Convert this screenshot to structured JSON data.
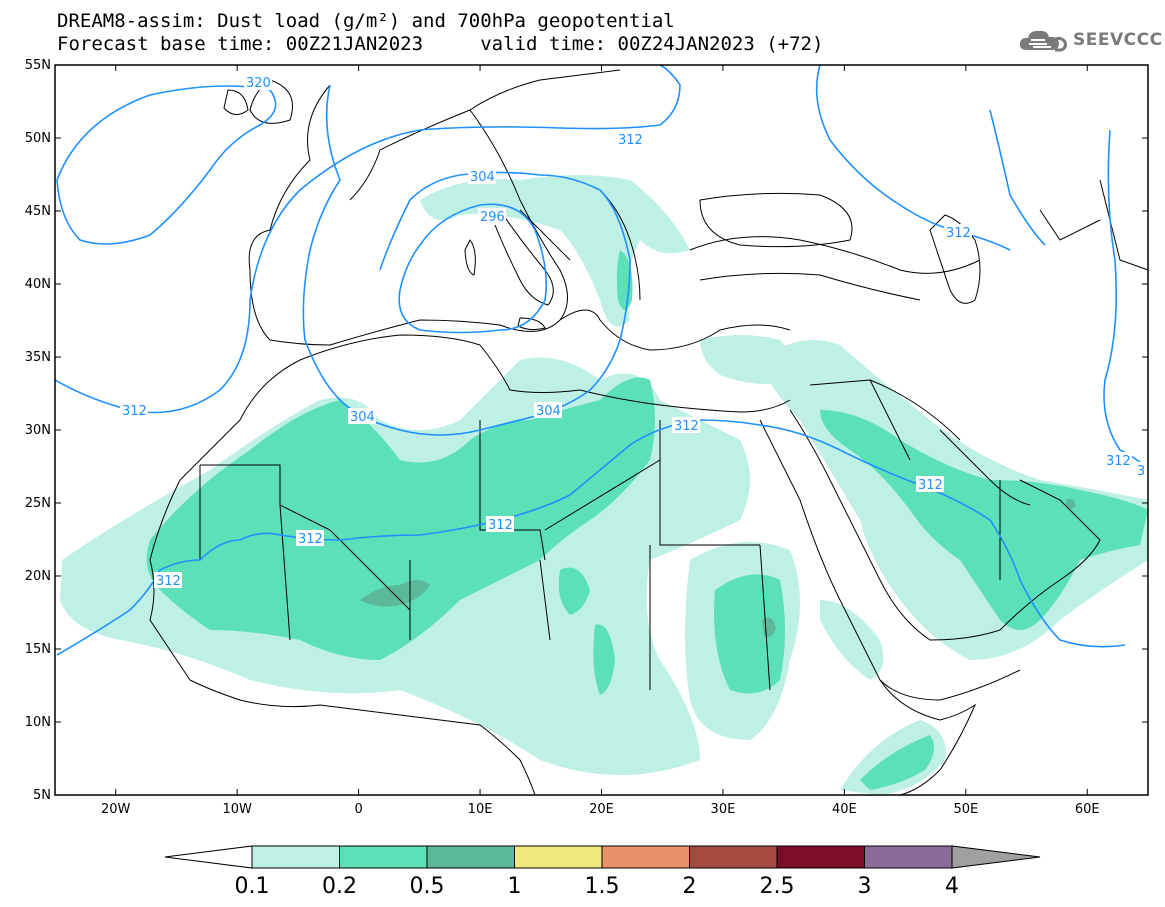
{
  "header": {
    "title_line1": "DREAM8-assim: Dust load (g/m²) and 700hPa geopotential",
    "title_line2": "Forecast base time: 00Z21JAN2023     valid time: 00Z24JAN2023 (+72)",
    "logo_text": "SEEVCCC",
    "logo_icon": "cloud-icon"
  },
  "map": {
    "lon_range": [
      -25,
      65
    ],
    "lat_range": [
      5,
      55
    ],
    "lat_ticks": [
      "55N",
      "50N",
      "45N",
      "40N",
      "35N",
      "30N",
      "25N",
      "20N",
      "15N",
      "10N",
      "5N"
    ],
    "lon_ticks": [
      "20W",
      "10W",
      "0",
      "10E",
      "20E",
      "30E",
      "40E",
      "50E",
      "60E"
    ],
    "contour_color": "#1e90ff",
    "contour_labels": [
      "320",
      "312",
      "304",
      "296",
      "312",
      "312",
      "304",
      "304",
      "312",
      "312",
      "312",
      "312",
      "312",
      "312",
      "3"
    ]
  },
  "colorbar": {
    "levels": [
      "0.1",
      "0.2",
      "0.5",
      "1",
      "1.5",
      "2",
      "2.5",
      "3",
      "4"
    ],
    "colors": [
      "#ffffff",
      "#bff0e6",
      "#5ce0b8",
      "#5bb89a",
      "#f2e77a",
      "#e8906a",
      "#a44a3f",
      "#7a0d2a",
      "#8b6b9a",
      "#a0a0a0"
    ]
  },
  "dust_colors": {
    "light": "#bff0e6",
    "medium": "#5ce0b8",
    "dark": "#5bb89a"
  }
}
